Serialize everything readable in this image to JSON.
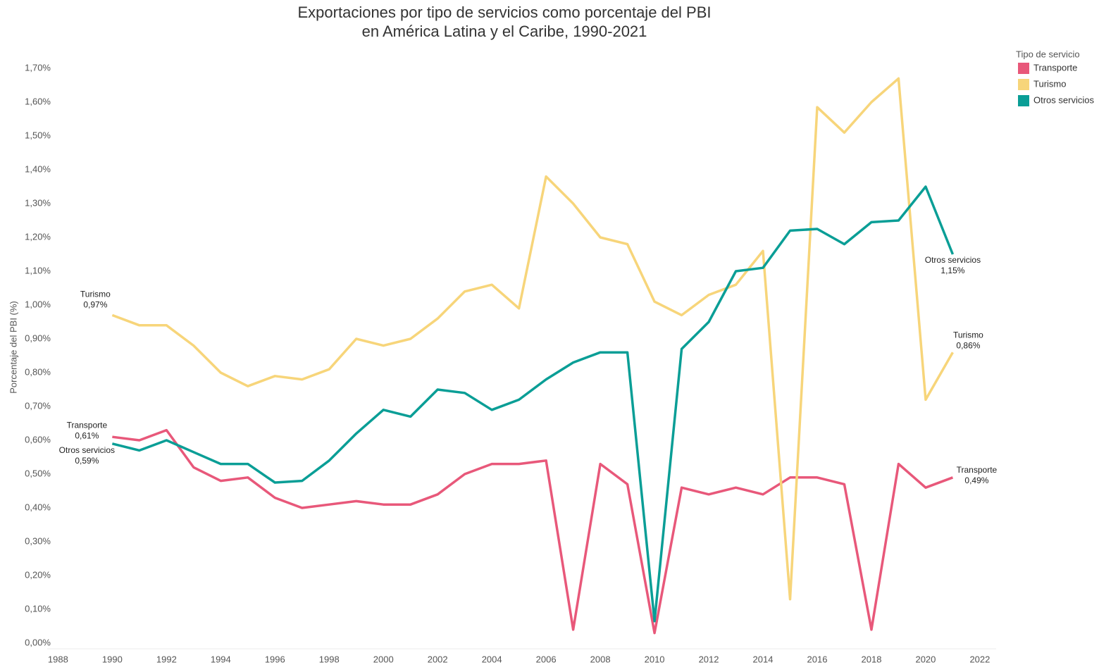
{
  "chart_data": {
    "type": "line",
    "title": [
      "Exportaciones por tipo de servicios como porcentaje del PBI",
      "en América Latina y el Caribe, 1990-2021"
    ],
    "y_label": "Porcentaje del PBI (%)",
    "legend_title": "Tipo de servicio",
    "legend": "top-right",
    "grid": false,
    "x": [
      1990,
      1991,
      1992,
      1993,
      1994,
      1995,
      1996,
      1997,
      1998,
      1999,
      2000,
      2001,
      2002,
      2003,
      2004,
      2005,
      2006,
      2007,
      2008,
      2009,
      2010,
      2011,
      2012,
      2013,
      2014,
      2015,
      2016,
      2017,
      2018,
      2019,
      2020,
      2021
    ],
    "xlim": [
      1987.6,
      2022.6
    ],
    "xticks": [
      1988,
      1990,
      1992,
      1994,
      1996,
      1998,
      2000,
      2002,
      2004,
      2006,
      2008,
      2010,
      2012,
      2014,
      2016,
      2018,
      2020,
      2022
    ],
    "ylim": [
      0,
      1.7
    ],
    "yticks": [
      {
        "value": 0,
        "label": "0,00%"
      },
      {
        "value": 0.1,
        "label": "0,10%"
      },
      {
        "value": 0.2,
        "label": "0,20%"
      },
      {
        "value": 0.3,
        "label": "0,30%"
      },
      {
        "value": 0.4,
        "label": "0,40%"
      },
      {
        "value": 0.5,
        "label": "0,50%"
      },
      {
        "value": 0.6,
        "label": "0,60%"
      },
      {
        "value": 0.7,
        "label": "0,70%"
      },
      {
        "value": 0.8,
        "label": "0,80%"
      },
      {
        "value": 0.9,
        "label": "0,90%"
      },
      {
        "value": 1.0,
        "label": "1,00%"
      },
      {
        "value": 1.1,
        "label": "1,10%"
      },
      {
        "value": 1.2,
        "label": "1,20%"
      },
      {
        "value": 1.3,
        "label": "1,30%"
      },
      {
        "value": 1.4,
        "label": "1,40%"
      },
      {
        "value": 1.5,
        "label": "1,50%"
      },
      {
        "value": 1.6,
        "label": "1,60%"
      },
      {
        "value": 1.7,
        "label": "1,70%"
      }
    ],
    "series": [
      {
        "name": "Transporte",
        "color": "#e8587a",
        "values": [
          0.61,
          0.6,
          0.63,
          0.52,
          0.48,
          0.49,
          0.43,
          0.4,
          0.41,
          0.42,
          0.41,
          0.41,
          0.44,
          0.5,
          0.53,
          0.53,
          0.54,
          0.04,
          0.53,
          0.47,
          0.03,
          0.46,
          0.44,
          0.46,
          0.44,
          0.49,
          0.49,
          0.47,
          0.04,
          0.53,
          0.46,
          0.49
        ],
        "value_labels": [
          "0,61%",
          null,
          null,
          null,
          null,
          null,
          null,
          null,
          null,
          null,
          null,
          null,
          null,
          null,
          null,
          null,
          null,
          null,
          null,
          null,
          null,
          null,
          null,
          null,
          null,
          null,
          null,
          null,
          null,
          null,
          null,
          "0,49%"
        ]
      },
      {
        "name": "Turismo",
        "color": "#f7d57a",
        "values": [
          0.97,
          0.94,
          0.94,
          0.88,
          0.8,
          0.76,
          0.79,
          0.78,
          0.81,
          0.9,
          0.88,
          0.9,
          0.96,
          1.04,
          1.06,
          0.99,
          1.38,
          1.3,
          1.2,
          1.18,
          1.01,
          0.97,
          1.03,
          1.06,
          1.16,
          0.13,
          1.585,
          1.51,
          1.6,
          1.67,
          0.72,
          0.86
        ],
        "value_labels": [
          "0,97%",
          null,
          null,
          null,
          null,
          null,
          null,
          null,
          null,
          null,
          null,
          null,
          null,
          null,
          null,
          null,
          null,
          null,
          null,
          null,
          null,
          null,
          null,
          null,
          null,
          null,
          null,
          null,
          null,
          null,
          null,
          "0,86%"
        ]
      },
      {
        "name": "Otros servicios",
        "color": "#0a9e96",
        "values": [
          0.59,
          0.57,
          0.6,
          0.565,
          0.53,
          0.53,
          0.475,
          0.48,
          0.54,
          0.62,
          0.69,
          0.67,
          0.75,
          0.74,
          0.69,
          0.72,
          0.78,
          0.83,
          0.86,
          0.86,
          0.065,
          0.87,
          0.95,
          1.1,
          1.11,
          1.22,
          1.225,
          1.18,
          1.245,
          1.25,
          1.35,
          1.15
        ],
        "value_labels": [
          "0,59%",
          null,
          null,
          null,
          null,
          null,
          null,
          null,
          null,
          null,
          null,
          null,
          null,
          null,
          null,
          null,
          null,
          null,
          null,
          null,
          null,
          null,
          null,
          null,
          null,
          null,
          null,
          null,
          null,
          null,
          null,
          "1,15%"
        ]
      }
    ]
  }
}
